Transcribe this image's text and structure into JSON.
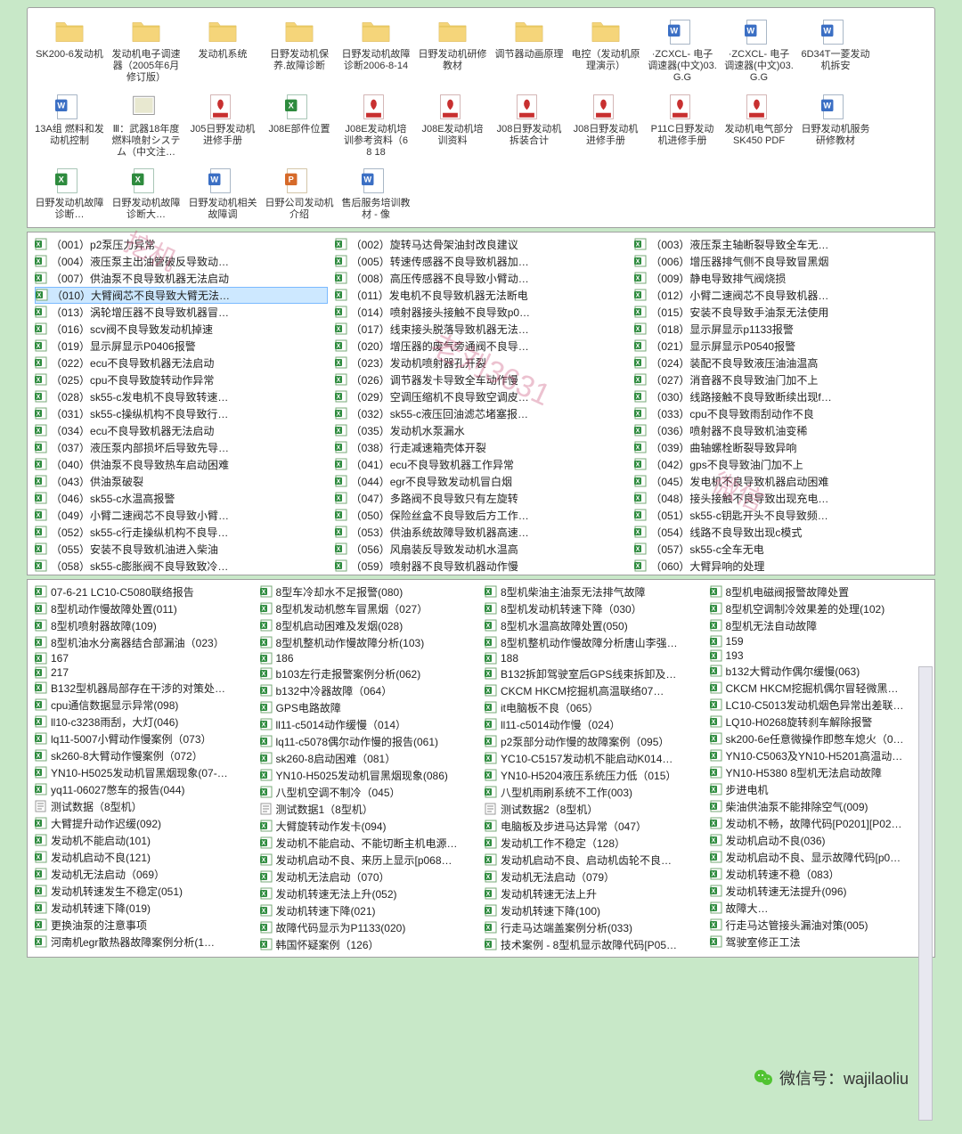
{
  "colors": {
    "bg": "#c8e8c8",
    "pane_bg": "#ffffff",
    "border": "#a0a0a0",
    "folder_fill": "#f5d57a",
    "folder_tab": "#e8c860",
    "doc_blue": "#3b6fc4",
    "pdf_red": "#c83030",
    "xls_green": "#2e8b3e",
    "ppt_orange": "#d66a2a",
    "sel_bg": "#cde8ff",
    "sel_border": "#7abaff",
    "watermark": "rgba(200,80,120,0.35)"
  },
  "top_items": [
    {
      "t": "folder",
      "label": "SK200-6发动机"
    },
    {
      "t": "folder",
      "label": "发动机电子调速器（2005年6月修订版）"
    },
    {
      "t": "folder",
      "label": "发动机系统"
    },
    {
      "t": "folder",
      "label": "日野发动机保养.故障诊断"
    },
    {
      "t": "folder",
      "label": "日野发动机故障诊断2006-8-14"
    },
    {
      "t": "folder",
      "label": "日野发动机研修教材"
    },
    {
      "t": "folder",
      "label": "调节器动画原理"
    },
    {
      "t": "folder",
      "label": "电控（发动机原理演示）"
    },
    {
      "t": "doc",
      "label": "·ZCXCL- 电子调速器(中文)03.G.G"
    },
    {
      "t": "doc",
      "label": "·ZCXCL- 电子调速器(中文)03.G.G"
    },
    {
      "t": "doc",
      "label": "6D34T一菱发动机拆安"
    },
    {
      "t": "doc",
      "label": "13A组 燃料和发动机控制"
    },
    {
      "t": "img",
      "label": "Ⅲ：武器18年度燃料喷射システム（中文注…"
    },
    {
      "t": "pdf",
      "label": "J05日野发动机进修手册"
    },
    {
      "t": "xls",
      "label": "J08E部件位置"
    },
    {
      "t": "pdf",
      "label": "J08E发动机培训参考资料（6 8 18"
    },
    {
      "t": "pdf",
      "label": "J08E发动机培训资料"
    },
    {
      "t": "pdf",
      "label": "J08日野发动机拆装合计"
    },
    {
      "t": "pdf",
      "label": "J08日野发动机进修手册"
    },
    {
      "t": "pdf",
      "label": "P11C日野发动机进修手册"
    },
    {
      "t": "pdf",
      "label": "发动机电气部分SK450 PDF"
    },
    {
      "t": "doc",
      "label": "日野发动机服务研修教材"
    },
    {
      "t": "xls",
      "label": "日野发动机故障诊断…"
    },
    {
      "t": "xls",
      "label": "日野发动机故障诊断大…"
    },
    {
      "t": "doc",
      "label": "日野发动机相关故障调"
    },
    {
      "t": "ppt",
      "label": "日野公司发动机介绍"
    },
    {
      "t": "doc",
      "label": "售后服务培训教材 - 像"
    }
  ],
  "mid_items": {
    "col1": [
      "（001）p2泵压力异常",
      "（004）液压泵主出油管破反导致动…",
      "（007）供油泵不良导致机器无法启动",
      "（010）大臂阀芯不良导致大臂无法…",
      "（013）涡轮增压器不良导致机器冒…",
      "（016）scv阀不良导致发动机掉速",
      "（019）显示屏显示P0406报警",
      "（022）ecu不良导致机器无法启动",
      "（025）cpu不良导致旋转动作异常",
      "（028）sk55-c发电机不良导致转速…",
      "（031）sk55-c操纵机构不良导致行…",
      "（034）ecu不良导致机器无法启动",
      "（037）液压泵内部损坏后导致先导…",
      "（040）供油泵不良导致热车启动困难",
      "（043）供油泵破裂",
      "（046）sk55-c水温高报警",
      "（049）小臂二速阀芯不良导致小臂…",
      "（052）sk55-c行走操纵机构不良导…",
      "（055）安装不良导致机油进入柴油",
      "（058）sk55-c膨胀阀不良导致致冷…"
    ],
    "col2": [
      "（002）旋转马达骨架油封改良建议",
      "（005）转速传感器不良导致机器加…",
      "（008）高压传感器不良导致小臂动…",
      "（011）发电机不良导致机器无法断电",
      "（014）喷射器接头接触不良导致p0…",
      "（017）线束接头脱落导致机器无法…",
      "（020）增压器的废气旁通阀不良导…",
      "（023）发动机喷射器孔开裂",
      "（026）调节器发卡导致全车动作慢",
      "（029）空调压缩机不良导致空调皮…",
      "（032）sk55-c液压回油滤芯堵塞报…",
      "（035）发动机水泵漏水",
      "（038）行走减速箱壳体开裂",
      "（041）ecu不良导致机器工作异常",
      "（044）egr不良导致发动机冒白烟",
      "（047）多路阀不良导致只有左旋转",
      "（050）保险丝盒不良导致后方工作…",
      "（053）供油系统故障导致机器高速…",
      "（056）风扇装反导致发动机水温高",
      "（059）喷射器不良导致机器动作慢"
    ],
    "col3": [
      "（003）液压泵主轴断裂导致全车无…",
      "（006）增压器排气侧不良导致冒黑烟",
      "（009）静电导致排气阀烧损",
      "（012）小臂二速阀芯不良导致机器…",
      "（015）安装不良导致手油泵无法使用",
      "（018）显示屏显示p1133报警",
      "（021）显示屏显示P0540报警",
      "（024）装配不良导致液压油油温高",
      "（027）消音器不良导致油门加不上",
      "（030）线路接触不良导致断续出现f…",
      "（033）cpu不良导致雨刮动作不良",
      "（036）喷射器不良导致机油变稀",
      "（039）曲轴螺栓断裂导致异响",
      "（042）gps不良导致油门加不上",
      "（045）发电机不良导致机器启动困难",
      "（048）接头接触不良导致出现充电…",
      "（051）sk55-c钥匙开头不良导致频…",
      "（054）线路不良导致出现c模式",
      "（057）sk55-c全车无电",
      "（060）大臂异响的处理"
    ]
  },
  "bottom_items": {
    "col1": [
      {
        "i": "xls",
        "t": "07-6-21  LC10-C5080联络报告"
      },
      {
        "i": "xls",
        "t": "8型机动作慢故障处置(011)"
      },
      {
        "i": "xls",
        "t": "8型机喷射器故障(109)"
      },
      {
        "i": "xls",
        "t": "8型机油水分离器结合部漏油（023）"
      },
      {
        "i": "xls",
        "t": "167"
      },
      {
        "i": "xls",
        "t": "217"
      },
      {
        "i": "xls",
        "t": "B132型机器局部存在干涉的对策处…"
      },
      {
        "i": "xls",
        "t": "cpu通信数据显示异常(098)"
      },
      {
        "i": "xls",
        "t": "ll10-c3238雨刮，大灯(046)"
      },
      {
        "i": "xls",
        "t": "lq11-5007小臂动作慢案例（073）"
      },
      {
        "i": "xls",
        "t": "sk260-8大臂动作慢案例（072）"
      },
      {
        "i": "xls",
        "t": "YN10-H5025发动机冒黑烟现象(07-…"
      },
      {
        "i": "xls",
        "t": "yq11-06027憋车的报告(044)"
      },
      {
        "i": "txt",
        "t": "测试数据（8型机）"
      },
      {
        "i": "xls",
        "t": "大臂提升动作迟缓(092)"
      },
      {
        "i": "xls",
        "t": "发动机不能启动(101)"
      },
      {
        "i": "xls",
        "t": "发动机启动不良(121)"
      },
      {
        "i": "xls",
        "t": "发动机无法启动（069）"
      },
      {
        "i": "xls",
        "t": "发动机转速发生不稳定(051)"
      },
      {
        "i": "xls",
        "t": "发动机转速下降(019)"
      },
      {
        "i": "xls",
        "t": "更换油泵的注意事项"
      },
      {
        "i": "xls",
        "t": "河南机egr散热器故障案例分析(1…"
      }
    ],
    "col2": [
      {
        "i": "xls",
        "t": "8型车冷却水不足报警(080)"
      },
      {
        "i": "xls",
        "t": "8型机发动机憋车冒黑烟（027）"
      },
      {
        "i": "xls",
        "t": "8型机启动困难及发烟(028)"
      },
      {
        "i": "xls",
        "t": "8型机整机动作慢故障分析(103)"
      },
      {
        "i": "xls",
        "t": "186"
      },
      {
        "i": "xls",
        "t": "b103左行走报警案例分析(062)"
      },
      {
        "i": "xls",
        "t": "b132中冷器故障（064）"
      },
      {
        "i": "xls",
        "t": "GPS电路故障"
      },
      {
        "i": "xls",
        "t": "ll11-c5014动作缓慢（014）"
      },
      {
        "i": "xls",
        "t": "lq11-c5078偶尔动作慢的报告(061)"
      },
      {
        "i": "xls",
        "t": "sk260-8启动困难（081）"
      },
      {
        "i": "xls",
        "t": "YN10-H5025发动机冒黑烟现象(086)"
      },
      {
        "i": "xls",
        "t": "八型机空调不制冷（045）"
      },
      {
        "i": "txt",
        "t": "测试数据1（8型机）"
      },
      {
        "i": "xls",
        "t": "大臂旋转动作发卡(094)"
      },
      {
        "i": "xls",
        "t": "发动机不能启动、不能切断主机电源…"
      },
      {
        "i": "xls",
        "t": "发动机启动不良、来历上显示[p068…"
      },
      {
        "i": "xls",
        "t": "发动机无法启动（070）"
      },
      {
        "i": "xls",
        "t": "发动机转速无法上升(052)"
      },
      {
        "i": "xls",
        "t": "发动机转速下降(021)"
      },
      {
        "i": "xls",
        "t": "故障代码显示为P1133(020)"
      },
      {
        "i": "xls",
        "t": "韩国怀疑案例（126）"
      }
    ],
    "col3": [
      {
        "i": "xls",
        "t": "8型机柴油主油泵无法排气故障"
      },
      {
        "i": "xls",
        "t": "8型机发动机转速下降（030）"
      },
      {
        "i": "xls",
        "t": "8型机水温高故障处置(050)"
      },
      {
        "i": "xls",
        "t": "8型机整机动作慢故障分析唐山李强…"
      },
      {
        "i": "xls",
        "t": "188"
      },
      {
        "i": "xls",
        "t": "B132拆卸驾驶室后GPS线束拆卸及…"
      },
      {
        "i": "xls",
        "t": "CKCM  HKCM挖掘机高温联络07…"
      },
      {
        "i": "xls",
        "t": "it电脑板不良（065）"
      },
      {
        "i": "xls",
        "t": "ll11-c5014动作慢（024）"
      },
      {
        "i": "xls",
        "t": "p2泵部分动作慢的故障案例（095）"
      },
      {
        "i": "xls",
        "t": "YC10-C5157发动机不能启动K014…"
      },
      {
        "i": "xls",
        "t": "YN10-H5204液压系统压力低（015）"
      },
      {
        "i": "xls",
        "t": "八型机雨刷系统不工作(003)"
      },
      {
        "i": "txt",
        "t": "测试数据2（8型机）"
      },
      {
        "i": "xls",
        "t": "电脑板及步进马达异常（047）"
      },
      {
        "i": "xls",
        "t": "发动机工作不稳定（128）"
      },
      {
        "i": "xls",
        "t": "发动机启动不良、启动机齿轮不良…"
      },
      {
        "i": "xls",
        "t": "发动机无法启动（079）"
      },
      {
        "i": "xls",
        "t": "发动机转速无法上升"
      },
      {
        "i": "xls",
        "t": "发动机转速下降(100)"
      },
      {
        "i": "xls",
        "t": "行走马达端盖案例分析(033)"
      },
      {
        "i": "xls",
        "t": "技术案例 - 8型机显示故障代码[P05…"
      }
    ],
    "col4": [
      {
        "i": "xls",
        "t": "8型机电磁阀报警故障处置"
      },
      {
        "i": "xls",
        "t": "8型机空调制冷效果差的处理(102)"
      },
      {
        "i": "xls",
        "t": "8型机无法自动故障"
      },
      {
        "i": "xls",
        "t": "159"
      },
      {
        "i": "xls",
        "t": "193"
      },
      {
        "i": "xls",
        "t": "b132大臂动作偶尔缓慢(063)"
      },
      {
        "i": "xls",
        "t": "CKCM  HKCM挖掘机偶尔冒轻微黑…"
      },
      {
        "i": "xls",
        "t": "LC10-C5013发动机烟色异常出差联…"
      },
      {
        "i": "xls",
        "t": "LQ10-H0268旋转刹车解除报警"
      },
      {
        "i": "xls",
        "t": "sk200-6e任意微操作即憋车熄火（0…"
      },
      {
        "i": "xls",
        "t": "YN10-C5063及YN10-H5201高温动…"
      },
      {
        "i": "xls",
        "t": "YN10-H5380  8型机无法启动故障"
      },
      {
        "i": "xls",
        "t": "步进电机"
      },
      {
        "i": "xls",
        "t": "柴油供油泵不能排除空气(009)"
      },
      {
        "i": "xls",
        "t": "发动机不畅，故障代码[P0201][P02…"
      },
      {
        "i": "xls",
        "t": "发动机启动不良(036)"
      },
      {
        "i": "xls",
        "t": "发动机启动不良、显示故障代码[p0…"
      },
      {
        "i": "xls",
        "t": "发动机转速不稳（083）"
      },
      {
        "i": "xls",
        "t": "发动机转速无法提升(096)"
      },
      {
        "i": "xls",
        "t": "故障大…"
      },
      {
        "i": "xls",
        "t": "行走马达管接头漏油对策(005)"
      },
      {
        "i": "xls",
        "t": "驾驶室修正工法"
      }
    ]
  },
  "watermarks": [
    "挖机",
    "老刘3631",
    "微信"
  ],
  "wechat_label": "微信号：wajilaoliu",
  "mid_selected_index": 3,
  "bottom_special_row": 13
}
